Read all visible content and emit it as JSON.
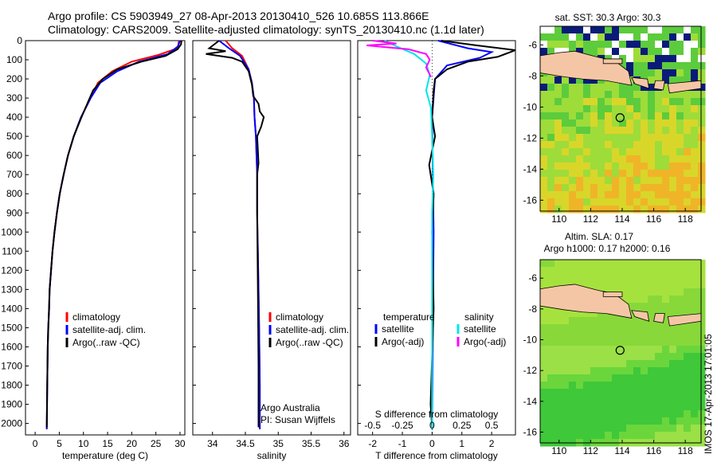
{
  "header": {
    "line1": "Argo profile: CS 5903949_27 08-Apr-2013 20130410_526 10.685S 113.866E",
    "line2": "Climatology: CARS2009. Satellite-adjusted climatology: synTS_20130410.nc (1.1d later)"
  },
  "footer_stamp": "IMOS 17-Apr-2013 17:01:05",
  "colors": {
    "climatology": "#ff0000",
    "satellite": "#0000ff",
    "argo": "#000000",
    "salinity_satellite": "#00e5e5",
    "salinity_argo": "#ff00ff",
    "land": "#f5c6a5"
  },
  "chart_data": [
    {
      "id": "temperature",
      "type": "line",
      "xlabel": "temperature (deg C)",
      "ylabel": "",
      "xlim": [
        -2,
        31
      ],
      "ylim": [
        2060,
        0
      ],
      "xticks": [
        0,
        5,
        10,
        15,
        20,
        25,
        30
      ],
      "yticks": [
        0,
        100,
        200,
        300,
        400,
        500,
        600,
        700,
        800,
        900,
        1000,
        1100,
        1200,
        1300,
        1400,
        1500,
        1600,
        1700,
        1800,
        1900,
        2000
      ],
      "legend": [
        "climatology",
        "satellite-adj. clim.",
        "Argo(..raw -QC)"
      ],
      "series": [
        {
          "name": "climatology",
          "color": "#ff0000",
          "x": [
            29.8,
            29.5,
            25.5,
            20,
            16,
            13,
            11.5,
            9.5,
            8,
            6.8,
            5.9,
            5.1,
            4.5,
            4.0,
            3.6,
            3.3,
            3.0,
            2.9,
            2.7,
            2.6,
            2.5,
            2.4
          ],
          "y": [
            0,
            40,
            75,
            110,
            160,
            220,
            300,
            400,
            500,
            600,
            700,
            800,
            900,
            1000,
            1100,
            1200,
            1300,
            1400,
            1500,
            1600,
            1800,
            2030
          ]
        },
        {
          "name": "satellite-adj. clim.",
          "color": "#0000ff",
          "x": [
            30,
            29.6,
            27.5,
            21.5,
            17,
            13.5,
            11.5,
            9.5,
            8,
            6.8,
            5.9,
            5.1,
            4.5,
            4.0,
            3.6,
            3.3,
            3.0,
            2.9,
            2.7,
            2.6,
            2.5,
            2.4
          ],
          "y": [
            0,
            30,
            70,
            110,
            160,
            220,
            300,
            400,
            500,
            600,
            700,
            800,
            900,
            1000,
            1100,
            1200,
            1300,
            1400,
            1500,
            1600,
            1800,
            2030
          ]
        },
        {
          "name": "Argo(..raw -QC)",
          "color": "#000000",
          "x": [
            30.3,
            30.2,
            29.5,
            27,
            22,
            17,
            14,
            12,
            11.3,
            9.6,
            8,
            6.8,
            5.9,
            5.1,
            4.5,
            4.0,
            3.6,
            3.3,
            3.0,
            2.8,
            2.6,
            2.5,
            2.4
          ],
          "y": [
            0,
            20,
            45,
            80,
            110,
            150,
            200,
            260,
            300,
            400,
            500,
            600,
            700,
            800,
            900,
            1000,
            1100,
            1200,
            1300,
            1450,
            1600,
            1800,
            2020
          ]
        }
      ]
    },
    {
      "id": "salinity",
      "type": "line",
      "xlabel": "salinity",
      "xlim": [
        33.7,
        36.1
      ],
      "ylim": [
        2060,
        0
      ],
      "xticks": [
        34,
        34.5,
        35,
        35.5,
        36
      ],
      "legend": [
        "climatology",
        "satellite-adj. clim.",
        "Argo(..raw -QC)"
      ],
      "annotation": [
        "Argo Australia",
        "PI: Susan Wijffels"
      ],
      "series": [
        {
          "name": "climatology",
          "color": "#ff0000",
          "x": [
            34.2,
            34.3,
            34.45,
            34.55,
            34.6,
            34.63,
            34.64,
            34.66,
            34.67,
            34.68,
            34.68,
            34.69,
            34.7,
            34.71,
            34.72,
            34.72
          ],
          "y": [
            0,
            40,
            80,
            150,
            220,
            300,
            400,
            500,
            600,
            700,
            900,
            1100,
            1300,
            1500,
            1800,
            2030
          ]
        },
        {
          "name": "satellite-adj. clim.",
          "color": "#0000ff",
          "x": [
            34.1,
            34.25,
            34.42,
            34.55,
            34.6,
            34.63,
            34.64,
            34.66,
            34.67,
            34.68,
            34.68,
            34.69,
            34.7,
            34.71,
            34.72,
            34.72
          ],
          "y": [
            0,
            40,
            80,
            150,
            220,
            300,
            400,
            500,
            600,
            700,
            900,
            1100,
            1300,
            1500,
            1800,
            2030
          ]
        },
        {
          "name": "Argo(..raw -QC)",
          "color": "#000000",
          "x": [
            34.1,
            33.95,
            34.2,
            33.9,
            34.3,
            34.45,
            34.55,
            34.6,
            34.62,
            34.7,
            34.72,
            34.78,
            34.74,
            34.68,
            34.7,
            34.68,
            34.68,
            34.69,
            34.7,
            34.7
          ],
          "y": [
            0,
            40,
            55,
            70,
            90,
            110,
            160,
            230,
            290,
            330,
            370,
            400,
            450,
            500,
            640,
            700,
            900,
            1300,
            1700,
            2020
          ]
        }
      ]
    },
    {
      "id": "differences",
      "type": "line",
      "xlabel": "T difference from climatology",
      "top_label": "S difference from climatology",
      "xlim": [
        -2.5,
        2.8
      ],
      "ylim": [
        2060,
        0
      ],
      "xticks": [
        -2,
        -1,
        0,
        1,
        2
      ],
      "top_ticks": [
        "-0.5",
        "-0.25",
        "0",
        "0.25",
        "0.5"
      ],
      "top_tick_values": [
        -0.5,
        -0.25,
        0,
        0.25,
        0.5
      ],
      "legend_temperature_title": "temperature",
      "legend_salinity_title": "salinity",
      "legend": [
        "satellite",
        "Argo(-adj)",
        "satellite",
        "Argo(-adj)"
      ],
      "series": [
        {
          "name": "T satellite",
          "color": "#0000ff",
          "x": [
            0.2,
            1.2,
            2.0,
            1.6,
            0.5,
            0.1,
            0,
            0.05,
            0
          ],
          "y": [
            0,
            40,
            60,
            90,
            130,
            200,
            400,
            1000,
            2030
          ]
        },
        {
          "name": "T Argo(-adj)",
          "color": "#000000",
          "x": [
            0.3,
            1.5,
            2.8,
            2.2,
            1.2,
            0.5,
            0.1,
            0.05,
            0,
            0.1,
            -0.1,
            0.05,
            0,
            0.05,
            -0.05,
            0
          ],
          "y": [
            0,
            25,
            50,
            85,
            110,
            150,
            200,
            260,
            400,
            500,
            650,
            800,
            1000,
            1400,
            1900,
            2020
          ]
        },
        {
          "name": "S satellite",
          "color": "#00e5e5",
          "x": [
            -0.4,
            -0.3,
            -0.15,
            -0.05,
            -0.02,
            -0.05,
            -0.01,
            0,
            0.01,
            0,
            0
          ],
          "y": [
            0,
            30,
            70,
            120,
            180,
            260,
            350,
            500,
            700,
            900,
            2030
          ]
        },
        {
          "name": "S Argo(-adj)",
          "color": "#ff00ff",
          "x": [
            -0.5,
            -0.3,
            -0.55,
            -0.2,
            -0.05,
            -0.02,
            -0.05,
            -0.01
          ],
          "y": [
            0,
            15,
            25,
            45,
            70,
            100,
            140,
            190
          ]
        }
      ]
    },
    {
      "id": "sst-map",
      "type": "heatmap",
      "title": "sat. SST: 30.3  Argo: 30.3",
      "xticks": [
        110,
        112,
        114,
        116,
        118
      ],
      "yticks": [
        -6,
        -8,
        -10,
        -12,
        -14,
        -16
      ],
      "xlim": [
        108.8,
        119
      ],
      "ylim": [
        -16.7,
        -4.8
      ],
      "marker": {
        "lon": 113.866,
        "lat": -10.685
      }
    },
    {
      "id": "sla-map",
      "type": "heatmap",
      "title": [
        "Altim. SLA: 0.17",
        "Argo h1000: 0.17  h2000: 0.16"
      ],
      "xticks": [
        110,
        112,
        114,
        116,
        118
      ],
      "yticks": [
        -6,
        -8,
        -10,
        -12,
        -14,
        -16
      ],
      "xlim": [
        108.8,
        119
      ],
      "ylim": [
        -16.7,
        -4.8
      ],
      "marker": {
        "lon": 113.866,
        "lat": -10.685
      }
    }
  ]
}
